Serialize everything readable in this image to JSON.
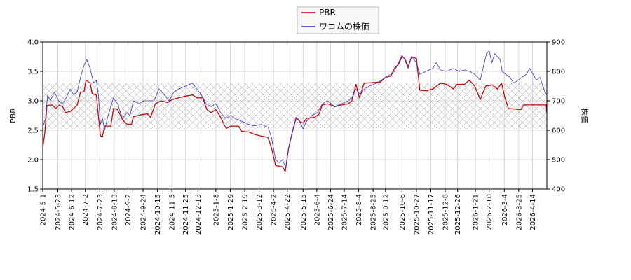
{
  "chart_data": {
    "type": "line",
    "legend": {
      "placement": "top-center",
      "entries": [
        {
          "label": "PBR",
          "color": "#cc0000"
        },
        {
          "label": "ワコムの株価",
          "color": "#3333cc"
        }
      ]
    },
    "ylabel_left": "PBR",
    "ylabel_right": "株価",
    "ylim_left": [
      1.5,
      4.0
    ],
    "ylim_right": [
      400,
      900
    ],
    "yticks_left": [
      "1.5",
      "2.0",
      "2.5",
      "3.0",
      "3.5",
      "4.0"
    ],
    "yticks_right": [
      "400",
      "500",
      "600",
      "700",
      "800",
      "900"
    ],
    "xlim": [
      "2024-05-01",
      "2026-05-05"
    ],
    "xticks": [
      "2024-5-1",
      "2024-5-23",
      "2024-6-12",
      "2024-7-2",
      "2024-7-23",
      "2024-8-13",
      "2024-9-2",
      "2024-9-24",
      "2024-10-15",
      "2024-11-5",
      "2024-11-25",
      "2024-12-13",
      "2025-1-8",
      "2025-1-29",
      "2025-2-19",
      "2025-3-12",
      "2025-4-2",
      "2025-4-22",
      "2025-5-15",
      "2025-6-4",
      "2025-6-24",
      "2025-7-14",
      "2025-8-4",
      "2025-8-25",
      "2025-9-12",
      "2025-10-6",
      "2025-10-27",
      "2025-11-17",
      "2025-12-8",
      "2025-12-26",
      "2026-1-21",
      "2026-2-10",
      "2026-3-4",
      "2026-3-25",
      "2026-4-14"
    ],
    "grid": true,
    "band": {
      "ylow": 2.53,
      "yhigh": 3.3,
      "pattern": "crosshatch"
    },
    "series": [
      {
        "name": "PBR",
        "axis": "left",
        "color": "#cc0000",
        "points": [
          [
            "2024-05-01",
            2.2
          ],
          [
            "2024-05-04",
            2.45
          ],
          [
            "2024-05-07",
            2.92
          ],
          [
            "2024-05-15",
            2.93
          ],
          [
            "2024-05-20",
            2.87
          ],
          [
            "2024-05-25",
            2.93
          ],
          [
            "2024-05-30",
            2.9
          ],
          [
            "2024-06-03",
            2.8
          ],
          [
            "2024-06-10",
            2.82
          ],
          [
            "2024-06-15",
            2.87
          ],
          [
            "2024-06-20",
            2.93
          ],
          [
            "2024-06-25",
            3.15
          ],
          [
            "2024-06-30",
            3.15
          ],
          [
            "2024-07-03",
            3.35
          ],
          [
            "2024-07-09",
            3.3
          ],
          [
            "2024-07-12",
            3.12
          ],
          [
            "2024-07-18",
            3.1
          ],
          [
            "2024-07-21",
            2.75
          ],
          [
            "2024-07-24",
            2.4
          ],
          [
            "2024-07-27",
            2.4
          ],
          [
            "2024-07-30",
            2.57
          ],
          [
            "2024-08-08",
            2.57
          ],
          [
            "2024-08-12",
            2.87
          ],
          [
            "2024-08-18",
            2.85
          ],
          [
            "2024-08-25",
            2.68
          ],
          [
            "2024-09-01",
            2.6
          ],
          [
            "2024-09-07",
            2.6
          ],
          [
            "2024-09-10",
            2.73
          ],
          [
            "2024-09-20",
            2.76
          ],
          [
            "2024-09-30",
            2.78
          ],
          [
            "2024-10-05",
            2.72
          ],
          [
            "2024-10-12",
            2.95
          ],
          [
            "2024-10-20",
            3.0
          ],
          [
            "2024-10-30",
            2.97
          ],
          [
            "2024-11-05",
            3.02
          ],
          [
            "2024-11-15",
            3.05
          ],
          [
            "2024-11-25",
            3.08
          ],
          [
            "2024-12-05",
            3.1
          ],
          [
            "2024-12-12",
            3.05
          ],
          [
            "2024-12-20",
            3.05
          ],
          [
            "2024-12-26",
            2.85
          ],
          [
            "2025-01-01",
            2.8
          ],
          [
            "2025-01-08",
            2.85
          ],
          [
            "2025-01-15",
            2.72
          ],
          [
            "2025-01-23",
            2.53
          ],
          [
            "2025-01-30",
            2.57
          ],
          [
            "2025-02-10",
            2.57
          ],
          [
            "2025-02-15",
            2.48
          ],
          [
            "2025-02-25",
            2.47
          ],
          [
            "2025-03-05",
            2.43
          ],
          [
            "2025-03-15",
            2.4
          ],
          [
            "2025-03-25",
            2.38
          ],
          [
            "2025-03-30",
            2.2
          ],
          [
            "2025-04-05",
            1.9
          ],
          [
            "2025-04-15",
            1.88
          ],
          [
            "2025-04-19",
            1.8
          ],
          [
            "2025-04-24",
            2.2
          ],
          [
            "2025-04-30",
            2.5
          ],
          [
            "2025-05-05",
            2.72
          ],
          [
            "2025-05-10",
            2.65
          ],
          [
            "2025-05-15",
            2.62
          ],
          [
            "2025-05-20",
            2.7
          ],
          [
            "2025-06-01",
            2.72
          ],
          [
            "2025-06-07",
            2.77
          ],
          [
            "2025-06-12",
            2.93
          ],
          [
            "2025-06-20",
            2.95
          ],
          [
            "2025-06-30",
            2.9
          ],
          [
            "2025-07-10",
            2.93
          ],
          [
            "2025-07-20",
            2.95
          ],
          [
            "2025-07-25",
            3.0
          ],
          [
            "2025-07-31",
            3.28
          ],
          [
            "2025-08-05",
            3.05
          ],
          [
            "2025-08-12",
            3.3
          ],
          [
            "2025-08-25",
            3.31
          ],
          [
            "2025-09-05",
            3.32
          ],
          [
            "2025-09-12",
            3.4
          ],
          [
            "2025-09-20",
            3.42
          ],
          [
            "2025-09-25",
            3.55
          ],
          [
            "2025-10-01",
            3.62
          ],
          [
            "2025-10-06",
            3.75
          ],
          [
            "2025-10-10",
            3.72
          ],
          [
            "2025-10-15",
            3.58
          ],
          [
            "2025-10-20",
            3.75
          ],
          [
            "2025-10-27",
            3.72
          ],
          [
            "2025-11-01",
            3.18
          ],
          [
            "2025-11-10",
            3.17
          ],
          [
            "2025-11-20",
            3.2
          ],
          [
            "2025-12-01",
            3.3
          ],
          [
            "2025-12-10",
            3.28
          ],
          [
            "2025-12-20",
            3.2
          ],
          [
            "2025-12-25",
            3.28
          ],
          [
            "2026-01-05",
            3.28
          ],
          [
            "2026-01-12",
            3.35
          ],
          [
            "2026-01-20",
            3.25
          ],
          [
            "2026-01-28",
            3.02
          ],
          [
            "2026-02-05",
            3.25
          ],
          [
            "2026-02-15",
            3.27
          ],
          [
            "2026-02-22",
            3.2
          ],
          [
            "2026-02-28",
            3.3
          ],
          [
            "2026-03-05",
            3.05
          ],
          [
            "2026-03-10",
            2.87
          ],
          [
            "2026-03-20",
            2.86
          ],
          [
            "2026-03-28",
            2.85
          ],
          [
            "2026-04-01",
            2.93
          ],
          [
            "2026-04-10",
            2.93
          ],
          [
            "2026-04-20",
            2.93
          ],
          [
            "2026-05-04",
            2.93
          ],
          [
            "2026-05-05",
            2.78
          ]
        ]
      },
      {
        "name": "ワコムの株価",
        "axis": "right",
        "color": "#3333cc",
        "points": [
          [
            "2024-05-01",
            610
          ],
          [
            "2024-05-05",
            640
          ],
          [
            "2024-05-08",
            720
          ],
          [
            "2024-05-12",
            700
          ],
          [
            "2024-05-18",
            730
          ],
          [
            "2024-05-24",
            700
          ],
          [
            "2024-05-30",
            690
          ],
          [
            "2024-06-04",
            710
          ],
          [
            "2024-06-10",
            740
          ],
          [
            "2024-06-15",
            720
          ],
          [
            "2024-06-20",
            730
          ],
          [
            "2024-06-25",
            780
          ],
          [
            "2024-06-30",
            820
          ],
          [
            "2024-07-04",
            840
          ],
          [
            "2024-07-09",
            810
          ],
          [
            "2024-07-14",
            760
          ],
          [
            "2024-07-18",
            770
          ],
          [
            "2024-07-21",
            720
          ],
          [
            "2024-07-24",
            620
          ],
          [
            "2024-07-27",
            640
          ],
          [
            "2024-07-30",
            600
          ],
          [
            "2024-08-03",
            640
          ],
          [
            "2024-08-08",
            680
          ],
          [
            "2024-08-12",
            710
          ],
          [
            "2024-08-18",
            690
          ],
          [
            "2024-08-25",
            640
          ],
          [
            "2024-09-01",
            660
          ],
          [
            "2024-09-05",
            650
          ],
          [
            "2024-09-10",
            700
          ],
          [
            "2024-09-18",
            690
          ],
          [
            "2024-09-25",
            700
          ],
          [
            "2024-10-02",
            700
          ],
          [
            "2024-10-10",
            700
          ],
          [
            "2024-10-17",
            740
          ],
          [
            "2024-10-25",
            720
          ],
          [
            "2024-11-01",
            700
          ],
          [
            "2024-11-08",
            730
          ],
          [
            "2024-11-15",
            740
          ],
          [
            "2024-11-25",
            750
          ],
          [
            "2024-12-05",
            760
          ],
          [
            "2024-12-10",
            745
          ],
          [
            "2024-12-18",
            720
          ],
          [
            "2024-12-25",
            690
          ],
          [
            "2025-01-01",
            680
          ],
          [
            "2025-01-08",
            690
          ],
          [
            "2025-01-15",
            660
          ],
          [
            "2025-01-22",
            640
          ],
          [
            "2025-01-30",
            650
          ],
          [
            "2025-02-05",
            640
          ],
          [
            "2025-02-15",
            630
          ],
          [
            "2025-02-25",
            620
          ],
          [
            "2025-03-05",
            615
          ],
          [
            "2025-03-15",
            620
          ],
          [
            "2025-03-25",
            610
          ],
          [
            "2025-03-30",
            575
          ],
          [
            "2025-04-05",
            500
          ],
          [
            "2025-04-10",
            490
          ],
          [
            "2025-04-15",
            500
          ],
          [
            "2025-04-20",
            470
          ],
          [
            "2025-04-24",
            540
          ],
          [
            "2025-04-30",
            600
          ],
          [
            "2025-05-05",
            640
          ],
          [
            "2025-05-10",
            630
          ],
          [
            "2025-05-15",
            605
          ],
          [
            "2025-05-20",
            630
          ],
          [
            "2025-05-28",
            650
          ],
          [
            "2025-06-05",
            660
          ],
          [
            "2025-06-12",
            690
          ],
          [
            "2025-06-20",
            700
          ],
          [
            "2025-06-30",
            680
          ],
          [
            "2025-07-10",
            690
          ],
          [
            "2025-07-20",
            700
          ],
          [
            "2025-07-25",
            710
          ],
          [
            "2025-07-31",
            740
          ],
          [
            "2025-08-06",
            720
          ],
          [
            "2025-08-12",
            740
          ],
          [
            "2025-08-20",
            750
          ],
          [
            "2025-08-30",
            760
          ],
          [
            "2025-09-06",
            770
          ],
          [
            "2025-09-12",
            780
          ],
          [
            "2025-09-20",
            790
          ],
          [
            "2025-09-25",
            800
          ],
          [
            "2025-10-01",
            830
          ],
          [
            "2025-10-06",
            855
          ],
          [
            "2025-10-10",
            840
          ],
          [
            "2025-10-15",
            810
          ],
          [
            "2025-10-20",
            850
          ],
          [
            "2025-10-27",
            830
          ],
          [
            "2025-11-01",
            790
          ],
          [
            "2025-11-10",
            800
          ],
          [
            "2025-11-20",
            810
          ],
          [
            "2025-11-25",
            830
          ],
          [
            "2025-12-01",
            805
          ],
          [
            "2025-12-10",
            800
          ],
          [
            "2025-12-20",
            810
          ],
          [
            "2025-12-28",
            800
          ],
          [
            "2026-01-05",
            805
          ],
          [
            "2026-01-12",
            800
          ],
          [
            "2026-01-20",
            790
          ],
          [
            "2026-01-28",
            770
          ],
          [
            "2026-02-02",
            820
          ],
          [
            "2026-02-06",
            860
          ],
          [
            "2026-02-10",
            870
          ],
          [
            "2026-02-14",
            830
          ],
          [
            "2026-02-18",
            860
          ],
          [
            "2026-02-22",
            850
          ],
          [
            "2026-02-26",
            840
          ],
          [
            "2026-03-01",
            800
          ],
          [
            "2026-03-06",
            790
          ],
          [
            "2026-03-12",
            780
          ],
          [
            "2026-03-18",
            760
          ],
          [
            "2026-03-24",
            770
          ],
          [
            "2026-03-30",
            780
          ],
          [
            "2026-04-05",
            790
          ],
          [
            "2026-04-10",
            810
          ],
          [
            "2026-04-15",
            790
          ],
          [
            "2026-04-20",
            770
          ],
          [
            "2026-04-25",
            780
          ],
          [
            "2026-05-02",
            730
          ],
          [
            "2026-05-05",
            720
          ]
        ]
      }
    ]
  }
}
